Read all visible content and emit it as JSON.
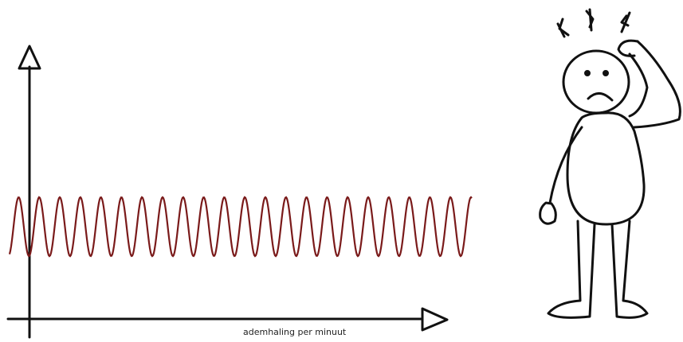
{
  "axis_label": "ademhaling per minuut"
}
